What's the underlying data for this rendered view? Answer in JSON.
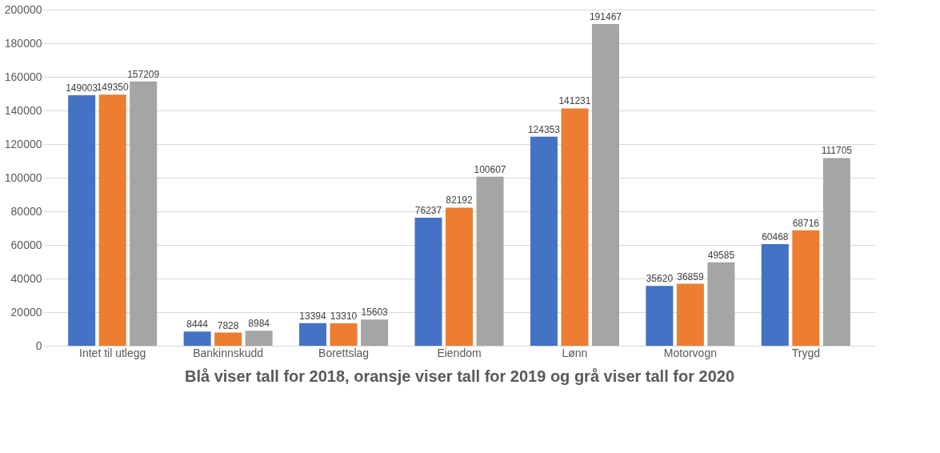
{
  "chart_data": {
    "type": "bar",
    "xlabel": "Blå viser tall for 2018, oransje viser tall for 2019 og grå viser tall for 2020",
    "categories": [
      "Intet til utlegg",
      "Bankinnskudd",
      "Borettslag",
      "Eiendom",
      "Lønn",
      "Motorvogn",
      "Trygd"
    ],
    "series": [
      {
        "color": "#4472c4",
        "values": [
          149003,
          8444,
          13394,
          76237,
          124353,
          35620,
          60468
        ]
      },
      {
        "color": "#ed7d31",
        "values": [
          149350,
          7828,
          13310,
          82192,
          141231,
          36859,
          68716
        ]
      },
      {
        "color": "#a5a5a5",
        "values": [
          157209,
          8984,
          15603,
          100607,
          191467,
          49585,
          111705
        ]
      }
    ],
    "ylim": [
      0,
      200000
    ],
    "yticks": [
      0,
      20000,
      40000,
      60000,
      80000,
      100000,
      120000,
      140000,
      160000,
      180000,
      200000
    ],
    "grid": "y",
    "legend": false,
    "data_labels": true
  }
}
